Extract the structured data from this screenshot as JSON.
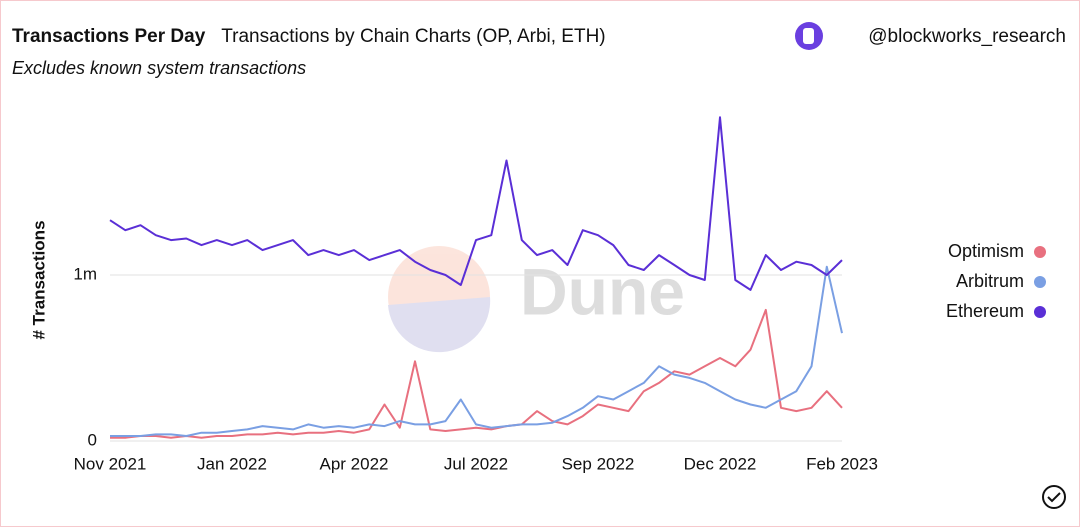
{
  "chart_data": {
    "type": "line",
    "title": "Transactions Per Day",
    "subtitle": "Transactions by Chain Charts (OP, Arbi, ETH)",
    "note": "Excludes known system transactions",
    "source": "@blockworks_research",
    "watermark": "Dune",
    "y_label": "# Transactions",
    "categories": [
      "Nov 2021",
      null,
      null,
      null,
      null,
      null,
      null,
      null,
      "Jan 2022",
      null,
      null,
      null,
      null,
      null,
      null,
      null,
      "Apr 2022",
      null,
      null,
      null,
      null,
      null,
      null,
      null,
      "Jul 2022",
      null,
      null,
      null,
      null,
      null,
      null,
      null,
      "Sep 2022",
      null,
      null,
      null,
      null,
      null,
      null,
      null,
      "Dec 2022",
      null,
      null,
      null,
      null,
      null,
      null,
      null,
      "Feb 2023"
    ],
    "ylim": [
      0,
      2000000
    ],
    "yticks": [
      0,
      {
        "value": 1000000,
        "label": "1m"
      }
    ],
    "grid": true,
    "legend": "right",
    "series": [
      {
        "name": "Optimism",
        "color": "#e8707f",
        "values": [
          20000,
          20000,
          30000,
          30000,
          20000,
          30000,
          20000,
          30000,
          30000,
          40000,
          40000,
          50000,
          40000,
          50000,
          50000,
          60000,
          50000,
          70000,
          220000,
          80000,
          480000,
          70000,
          60000,
          70000,
          80000,
          70000,
          90000,
          100000,
          180000,
          120000,
          100000,
          150000,
          220000,
          200000,
          180000,
          300000,
          350000,
          420000,
          400000,
          450000,
          500000,
          450000,
          550000,
          790000,
          200000,
          180000,
          200000,
          300000,
          200000
        ]
      },
      {
        "name": "Arbitrum",
        "color": "#7a9fe3",
        "values": [
          30000,
          30000,
          30000,
          40000,
          40000,
          30000,
          50000,
          50000,
          60000,
          70000,
          90000,
          80000,
          70000,
          100000,
          80000,
          90000,
          80000,
          100000,
          90000,
          120000,
          100000,
          100000,
          120000,
          250000,
          100000,
          80000,
          90000,
          100000,
          100000,
          110000,
          150000,
          200000,
          270000,
          250000,
          300000,
          350000,
          450000,
          400000,
          380000,
          350000,
          300000,
          250000,
          220000,
          200000,
          250000,
          300000,
          450000,
          1050000,
          650000
        ]
      },
      {
        "name": "Ethereum",
        "color": "#5a2fd6",
        "values": [
          1330000,
          1270000,
          1300000,
          1240000,
          1210000,
          1220000,
          1180000,
          1210000,
          1180000,
          1210000,
          1150000,
          1180000,
          1210000,
          1120000,
          1150000,
          1120000,
          1150000,
          1090000,
          1120000,
          1150000,
          1080000,
          1030000,
          1000000,
          940000,
          1210000,
          1240000,
          1690000,
          1210000,
          1120000,
          1150000,
          1060000,
          1270000,
          1240000,
          1180000,
          1060000,
          1030000,
          1120000,
          1060000,
          1000000,
          970000,
          1950000,
          970000,
          910000,
          1120000,
          1030000,
          1080000,
          1060000,
          1000000,
          1090000
        ]
      }
    ]
  }
}
